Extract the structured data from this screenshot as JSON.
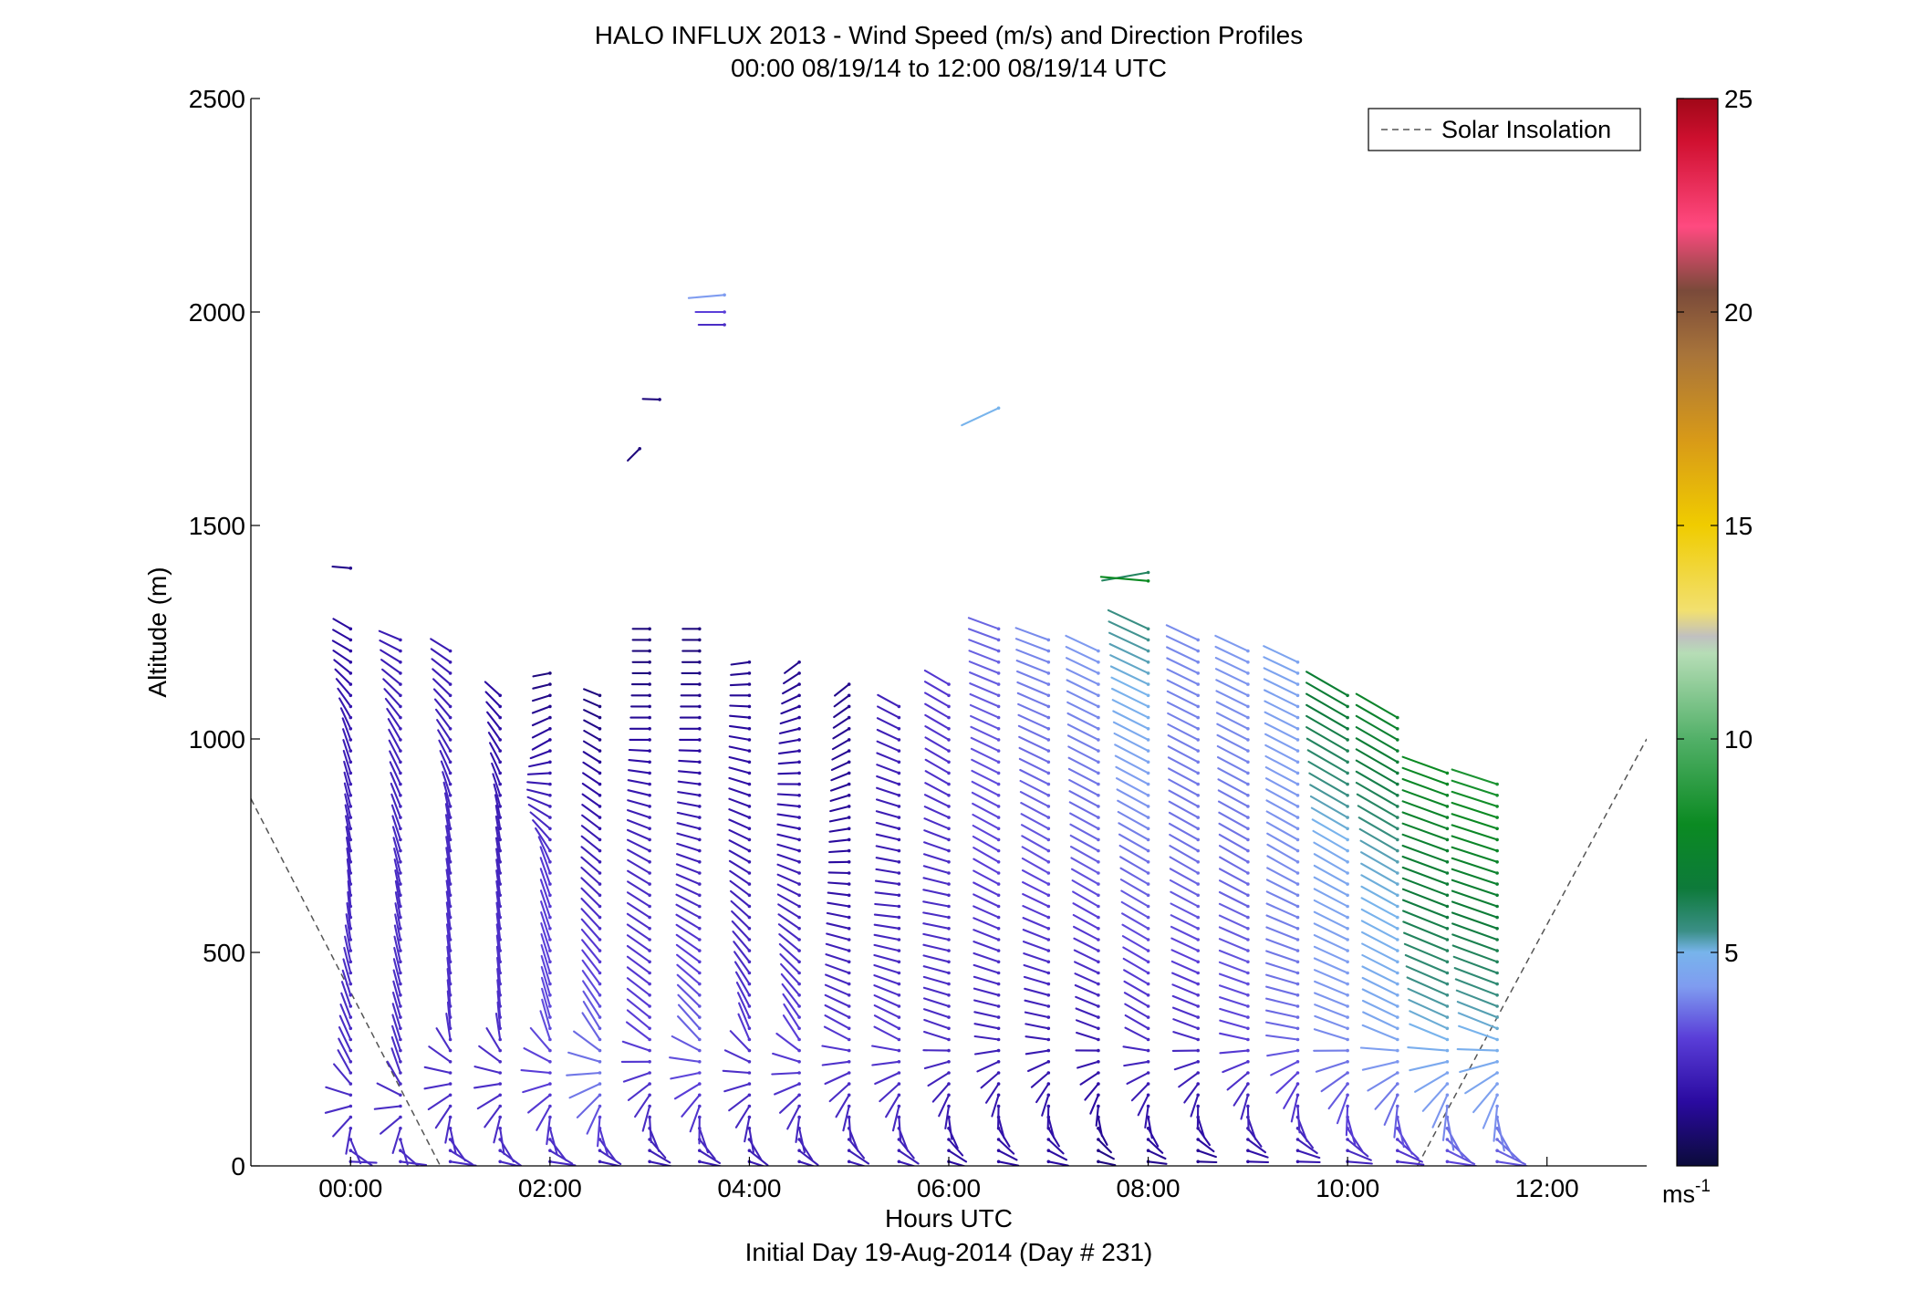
{
  "chart_data": {
    "type": "scatter",
    "subtype": "wind-barb-profile",
    "title": "HALO INFLUX 2013 - Wind Speed (m/s) and Direction Profiles",
    "subtitle": "00:00 08/19/14 to 12:00 08/19/14  UTC",
    "xlabel": "Hours UTC",
    "xlabel2": "Initial Day 19-Aug-2014 (Day # 231)",
    "ylabel": "Altitude (m)",
    "xlim": [
      -1,
      13
    ],
    "ylim": [
      0,
      2500
    ],
    "x_ticks": [
      0,
      2,
      4,
      6,
      8,
      10,
      12
    ],
    "x_tick_labels": [
      "00:00",
      "02:00",
      "04:00",
      "06:00",
      "08:00",
      "10:00",
      "12:00"
    ],
    "y_ticks": [
      0,
      500,
      1000,
      1500,
      2000,
      2500
    ],
    "y_tick_labels": [
      "0",
      "500",
      "1000",
      "1500",
      "2000",
      "2500"
    ],
    "grid": false,
    "legend": {
      "position": "top-right",
      "entries": [
        {
          "label": "Solar Insolation",
          "style": "dashed",
          "color": "#555555"
        }
      ]
    },
    "colorbar": {
      "label": "ms",
      "label_exponent": "-1",
      "range": [
        0,
        25
      ],
      "ticks": [
        5,
        10,
        15,
        20,
        25
      ],
      "tick_labels": [
        "5",
        "10",
        "15",
        "20",
        "25"
      ],
      "colormap": [
        {
          "v": 0,
          "c": "#0b0b3a"
        },
        {
          "v": 1.5,
          "c": "#2a0aa0"
        },
        {
          "v": 3,
          "c": "#5a3ed8"
        },
        {
          "v": 4.2,
          "c": "#7f9cf0"
        },
        {
          "v": 5,
          "c": "#78b4ec"
        },
        {
          "v": 5.5,
          "c": "#3b8f86"
        },
        {
          "v": 6.5,
          "c": "#0d7a3a"
        },
        {
          "v": 8,
          "c": "#0b8a22"
        },
        {
          "v": 10,
          "c": "#52b068"
        },
        {
          "v": 12,
          "c": "#b6ddb6"
        },
        {
          "v": 12.4,
          "c": "#c0c0c0"
        },
        {
          "v": 13,
          "c": "#f2e070"
        },
        {
          "v": 15,
          "c": "#f0cc00"
        },
        {
          "v": 17,
          "c": "#d89a18"
        },
        {
          "v": 19,
          "c": "#a8743a"
        },
        {
          "v": 20.5,
          "c": "#7a4a3a"
        },
        {
          "v": 22,
          "c": "#ff4a80"
        },
        {
          "v": 24,
          "c": "#d01030"
        },
        {
          "v": 25,
          "c": "#a00818"
        }
      ]
    },
    "solar_insolation_lines": [
      {
        "x": [
          -1,
          0.9
        ],
        "y": [
          860,
          0
        ]
      },
      {
        "x": [
          10.7,
          13
        ],
        "y": [
          0,
          1000
        ]
      }
    ],
    "profile_times": [
      0.0,
      0.5,
      1.0,
      1.5,
      2.0,
      2.5,
      3.0,
      3.5,
      4.0,
      4.5,
      5.0,
      5.5,
      6.0,
      6.5,
      7.0,
      7.5,
      8.0,
      8.5,
      9.0,
      9.5,
      10.0,
      10.5,
      11.0,
      11.5
    ],
    "profiles": [
      {
        "t": 0.0,
        "top": 1400,
        "dir": [
          [
            0,
            80
          ],
          [
            200,
            330
          ],
          [
            600,
            355
          ],
          [
            1000,
            340
          ],
          [
            1200,
            300
          ]
        ],
        "spd": [
          [
            0,
            2.5
          ],
          [
            500,
            2.5
          ],
          [
            1000,
            2
          ],
          [
            1400,
            1.2
          ]
        ]
      },
      {
        "t": 0.5,
        "top": 1250,
        "dir": [
          [
            0,
            85
          ],
          [
            200,
            340
          ],
          [
            600,
            350
          ],
          [
            1000,
            330
          ],
          [
            1250,
            290
          ]
        ],
        "spd": [
          [
            0,
            2.5
          ],
          [
            500,
            2.5
          ],
          [
            1000,
            2.2
          ],
          [
            1250,
            2
          ]
        ]
      },
      {
        "t": 1.0,
        "top": 1220,
        "dir": [
          [
            0,
            90
          ],
          [
            300,
            355
          ],
          [
            800,
            350
          ],
          [
            1220,
            300
          ]
        ],
        "spd": [
          [
            0,
            2.5
          ],
          [
            500,
            2.6
          ],
          [
            1220,
            2
          ]
        ]
      },
      {
        "t": 1.5,
        "top": 1120,
        "dir": [
          [
            0,
            95
          ],
          [
            300,
            355
          ],
          [
            800,
            350
          ],
          [
            1120,
            310
          ]
        ],
        "spd": [
          [
            0,
            2.5
          ],
          [
            500,
            2.6
          ],
          [
            1120,
            1.5
          ]
        ]
      },
      {
        "t": 2.0,
        "top": 1160,
        "dir": [
          [
            0,
            90
          ],
          [
            300,
            345
          ],
          [
            700,
            340
          ],
          [
            1000,
            240
          ],
          [
            1160,
            260
          ]
        ],
        "spd": [
          [
            0,
            2.4
          ],
          [
            300,
            3.2
          ],
          [
            700,
            2.8
          ],
          [
            1000,
            1.5
          ],
          [
            1160,
            1
          ]
        ]
      },
      {
        "t": 2.5,
        "top": 1120,
        "dir": [
          [
            0,
            95
          ],
          [
            300,
            330
          ],
          [
            700,
            310
          ],
          [
            1000,
            300
          ],
          [
            1120,
            290
          ]
        ],
        "spd": [
          [
            0,
            2
          ],
          [
            200,
            3.8
          ],
          [
            600,
            2.5
          ],
          [
            1000,
            1.2
          ],
          [
            1120,
            1
          ]
        ]
      },
      {
        "t": 3.0,
        "top": 1800,
        "dir": [
          [
            0,
            95
          ],
          [
            300,
            310
          ],
          [
            700,
            300
          ],
          [
            1000,
            270
          ],
          [
            1160,
            270
          ]
        ],
        "spd": [
          [
            0,
            2
          ],
          [
            300,
            3
          ],
          [
            700,
            2.4
          ],
          [
            1160,
            1
          ]
        ]
      },
      {
        "t": 3.5,
        "top": 2040,
        "dir": [
          [
            0,
            95
          ],
          [
            300,
            320
          ],
          [
            700,
            290
          ],
          [
            1000,
            270
          ],
          [
            1200,
            270
          ]
        ],
        "spd": [
          [
            0,
            2
          ],
          [
            300,
            3.5
          ],
          [
            700,
            2.2
          ],
          [
            1200,
            1
          ]
        ]
      },
      {
        "t": 4.0,
        "top": 1200,
        "dir": [
          [
            0,
            100
          ],
          [
            300,
            340
          ],
          [
            700,
            300
          ],
          [
            1000,
            280
          ],
          [
            1200,
            260
          ]
        ],
        "spd": [
          [
            0,
            2
          ],
          [
            300,
            2.8
          ],
          [
            700,
            2
          ],
          [
            1200,
            1.2
          ]
        ]
      },
      {
        "t": 4.5,
        "top": 1200,
        "dir": [
          [
            0,
            100
          ],
          [
            300,
            330
          ],
          [
            700,
            290
          ],
          [
            1000,
            260
          ],
          [
            1200,
            230
          ]
        ],
        "spd": [
          [
            0,
            2
          ],
          [
            300,
            3
          ],
          [
            700,
            2
          ],
          [
            1200,
            1.2
          ]
        ]
      },
      {
        "t": 5.0,
        "top": 1150,
        "dir": [
          [
            0,
            100
          ],
          [
            300,
            300
          ],
          [
            600,
            280
          ],
          [
            1000,
            240
          ],
          [
            1150,
            230
          ]
        ],
        "spd": [
          [
            0,
            2
          ],
          [
            300,
            2.8
          ],
          [
            700,
            1.5
          ],
          [
            1150,
            1.2
          ]
        ]
      },
      {
        "t": 5.5,
        "top": 1100,
        "dir": [
          [
            0,
            100
          ],
          [
            300,
            300
          ],
          [
            600,
            275
          ],
          [
            1100,
            300
          ]
        ],
        "spd": [
          [
            0,
            2
          ],
          [
            300,
            2.8
          ],
          [
            700,
            2
          ],
          [
            1100,
            2.2
          ]
        ]
      },
      {
        "t": 6.0,
        "top": 1150,
        "dir": [
          [
            0,
            100
          ],
          [
            300,
            290
          ],
          [
            600,
            280
          ],
          [
            900,
            300
          ],
          [
            1150,
            300
          ]
        ],
        "spd": [
          [
            0,
            1.5
          ],
          [
            300,
            2.5
          ],
          [
            700,
            2.5
          ],
          [
            1150,
            2.8
          ]
        ]
      },
      {
        "t": 6.5,
        "top": 1780,
        "dir": [
          [
            0,
            95
          ],
          [
            300,
            280
          ],
          [
            700,
            300
          ],
          [
            1000,
            295
          ],
          [
            1240,
            290
          ]
        ],
        "spd": [
          [
            0,
            1.5
          ],
          [
            300,
            2.2
          ],
          [
            700,
            3
          ],
          [
            1240,
            3.5
          ]
        ]
      },
      {
        "t": 7.0,
        "top": 1240,
        "dir": [
          [
            0,
            95
          ],
          [
            300,
            280
          ],
          [
            700,
            300
          ],
          [
            1000,
            295
          ],
          [
            1240,
            290
          ]
        ],
        "spd": [
          [
            0,
            1.5
          ],
          [
            300,
            2
          ],
          [
            700,
            3.2
          ],
          [
            1240,
            4
          ]
        ]
      },
      {
        "t": 7.5,
        "top": 1220,
        "dir": [
          [
            0,
            95
          ],
          [
            300,
            290
          ],
          [
            600,
            300
          ],
          [
            1220,
            295
          ]
        ],
        "spd": [
          [
            0,
            1
          ],
          [
            300,
            2
          ],
          [
            700,
            3.4
          ],
          [
            1220,
            4.2
          ]
        ]
      },
      {
        "t": 8.0,
        "top": 1390,
        "dir": [
          [
            0,
            90
          ],
          [
            300,
            300
          ],
          [
            700,
            300
          ],
          [
            1200,
            295
          ]
        ],
        "spd": [
          [
            0,
            1.2
          ],
          [
            300,
            2.5
          ],
          [
            700,
            3.6
          ],
          [
            1390,
            6
          ]
        ]
      },
      {
        "t": 8.5,
        "top": 1240,
        "dir": [
          [
            0,
            85
          ],
          [
            300,
            290
          ],
          [
            700,
            300
          ],
          [
            1240,
            295
          ]
        ],
        "spd": [
          [
            0,
            1.2
          ],
          [
            300,
            2.5
          ],
          [
            700,
            3.6
          ],
          [
            1240,
            4
          ]
        ]
      },
      {
        "t": 9.0,
        "top": 1220,
        "dir": [
          [
            0,
            85
          ],
          [
            300,
            285
          ],
          [
            700,
            300
          ],
          [
            1220,
            295
          ]
        ],
        "spd": [
          [
            0,
            1.5
          ],
          [
            300,
            3
          ],
          [
            700,
            3.6
          ],
          [
            1220,
            4.2
          ]
        ]
      },
      {
        "t": 9.5,
        "top": 1200,
        "dir": [
          [
            0,
            85
          ],
          [
            300,
            280
          ],
          [
            700,
            300
          ],
          [
            1200,
            295
          ]
        ],
        "spd": [
          [
            0,
            1.8
          ],
          [
            300,
            3.5
          ],
          [
            700,
            4
          ],
          [
            1200,
            4.5
          ]
        ]
      },
      {
        "t": 10.0,
        "top": 1120,
        "dir": [
          [
            0,
            88
          ],
          [
            300,
            290
          ],
          [
            700,
            300
          ],
          [
            1120,
            300
          ]
        ],
        "spd": [
          [
            0,
            2.2
          ],
          [
            300,
            4
          ],
          [
            700,
            4.6
          ],
          [
            1120,
            7
          ]
        ]
      },
      {
        "t": 10.5,
        "top": 1060,
        "dir": [
          [
            0,
            90
          ],
          [
            300,
            295
          ],
          [
            700,
            300
          ],
          [
            1060,
            300
          ]
        ],
        "spd": [
          [
            0,
            2.5
          ],
          [
            300,
            4.5
          ],
          [
            700,
            5.2
          ],
          [
            1060,
            7.5
          ]
        ]
      },
      {
        "t": 11.0,
        "top": 930,
        "dir": [
          [
            0,
            92
          ],
          [
            300,
            295
          ],
          [
            700,
            290
          ],
          [
            930,
            290
          ]
        ],
        "spd": [
          [
            0,
            3
          ],
          [
            300,
            5
          ],
          [
            600,
            6.5
          ],
          [
            930,
            8
          ]
        ]
      },
      {
        "t": 11.5,
        "top": 900,
        "dir": [
          [
            0,
            92
          ],
          [
            300,
            292
          ],
          [
            700,
            288
          ],
          [
            900,
            288
          ]
        ],
        "spd": [
          [
            0,
            3.2
          ],
          [
            300,
            5
          ],
          [
            600,
            6.8
          ],
          [
            900,
            8.5
          ]
        ]
      }
    ],
    "isolated_barbs": [
      {
        "t": 0.0,
        "z": 1400,
        "dir": 275,
        "spd": 1.2
      },
      {
        "t": 2.9,
        "z": 1680,
        "dir": 225,
        "spd": 1.0
      },
      {
        "t": 3.1,
        "z": 1795,
        "dir": 272,
        "spd": 1.0
      },
      {
        "t": 3.75,
        "z": 2040,
        "dir": 265,
        "spd": 4.2
      },
      {
        "t": 3.75,
        "z": 2000,
        "dir": 270,
        "spd": 3.0
      },
      {
        "t": 3.75,
        "z": 1970,
        "dir": 270,
        "spd": 2.5
      },
      {
        "t": 6.5,
        "z": 1775,
        "dir": 245,
        "spd": 5.0
      },
      {
        "t": 8.0,
        "z": 1390,
        "dir": 260,
        "spd": 6.0
      },
      {
        "t": 8.0,
        "z": 1370,
        "dir": 275,
        "spd": 8.0
      }
    ]
  }
}
